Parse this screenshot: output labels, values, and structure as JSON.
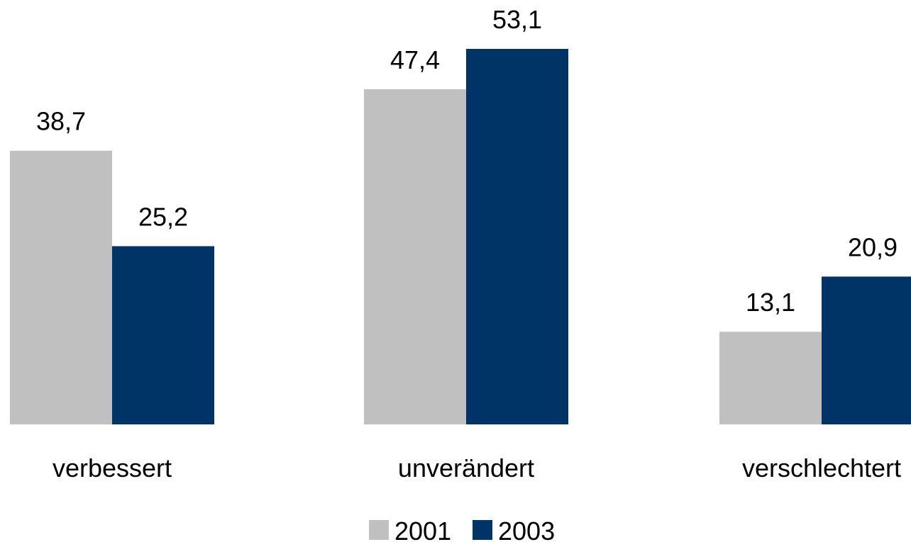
{
  "chart_data": {
    "type": "bar",
    "categories": [
      "verbessert",
      "unverändert",
      "verschlechtert"
    ],
    "series": [
      {
        "name": "2001",
        "values": [
          38.7,
          47.4,
          13.1
        ],
        "labels": [
          "38,7",
          "47,4",
          "13,1"
        ],
        "color": "#c0c0c0"
      },
      {
        "name": "2003",
        "values": [
          25.2,
          53.1,
          20.9
        ],
        "labels": [
          "25,2",
          "53,1",
          "20,9"
        ],
        "color": "#003366"
      }
    ],
    "ylim": [
      0,
      53.1
    ],
    "grid": false,
    "legend_position": "bottom"
  }
}
